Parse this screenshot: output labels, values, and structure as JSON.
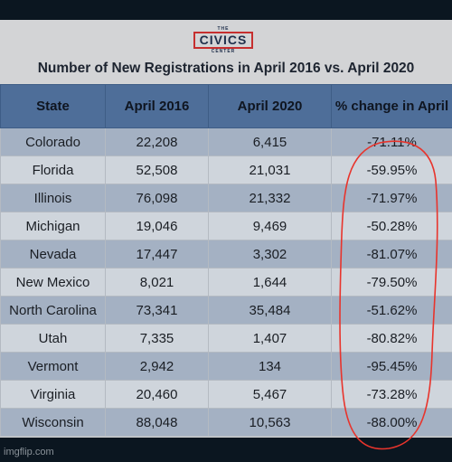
{
  "logo": {
    "small_top": "THE",
    "main": "CIVICS",
    "small_bottom": "CENTER"
  },
  "title": "Number of New Registrations in April 2016 vs. April 2020",
  "table": {
    "headers": [
      "State",
      "April 2016",
      "April 2020",
      "% change in April"
    ],
    "rows": [
      [
        "Colorado",
        "22,208",
        "6,415",
        "-71.11%"
      ],
      [
        "Florida",
        "52,508",
        "21,031",
        "-59.95%"
      ],
      [
        "Illinois",
        "76,098",
        "21,332",
        "-71.97%"
      ],
      [
        "Michigan",
        "19,046",
        "9,469",
        "-50.28%"
      ],
      [
        "Nevada",
        "17,447",
        "3,302",
        "-81.07%"
      ],
      [
        "New Mexico",
        "8,021",
        "1,644",
        "-79.50%"
      ],
      [
        "North Carolina",
        "73,341",
        "35,484",
        "-51.62%"
      ],
      [
        "Utah",
        "7,335",
        "1,407",
        "-80.82%"
      ],
      [
        "Vermont",
        "2,942",
        "134",
        "-95.45%"
      ],
      [
        "Virginia",
        "20,460",
        "5,467",
        "-73.28%"
      ],
      [
        "Wisconsin",
        "88,048",
        "10,563",
        "-88.00%"
      ]
    ]
  },
  "annotation": {
    "color": "#e8342c"
  },
  "watermark": "imgflip.com"
}
